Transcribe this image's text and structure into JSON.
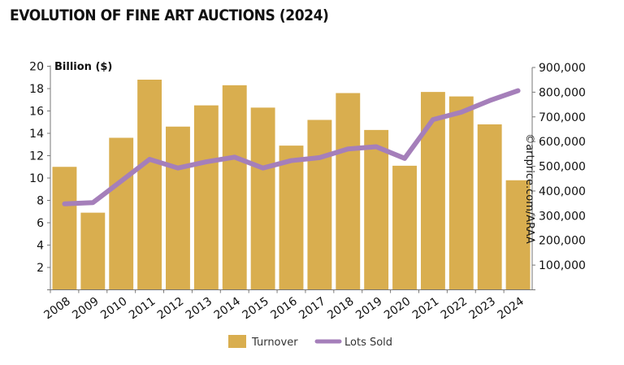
{
  "chart_data": {
    "type": "bar",
    "title": "EVOLUTION OF FINE ART AUCTIONS (2024)",
    "ylabel": "Billion ($)",
    "y2label": "",
    "watermark": "©artprice.com/ARAA",
    "categories": [
      "2008",
      "2009",
      "2010",
      "2011",
      "2012",
      "2013",
      "2014",
      "2015",
      "2016",
      "2017",
      "2018",
      "2019",
      "2020",
      "2021",
      "2022",
      "2023",
      "2024"
    ],
    "ylim": [
      0,
      20
    ],
    "y_ticks": [
      2,
      4,
      6,
      8,
      10,
      12,
      14,
      16,
      18,
      20
    ],
    "y2lim": [
      0,
      900000
    ],
    "y2_ticks": [
      "100,000",
      "200,000",
      "300,000",
      "400,000",
      "500,000",
      "600,000",
      "700,000",
      "800,000",
      "900,000"
    ],
    "grid": false,
    "legend": "bottom",
    "series": [
      {
        "name": "Turnover",
        "type": "bar",
        "axis": "left",
        "color": "#d9ae4f",
        "values": [
          11.0,
          6.9,
          13.6,
          18.8,
          14.6,
          16.5,
          18.3,
          16.3,
          12.9,
          15.2,
          17.6,
          14.3,
          11.1,
          17.7,
          17.3,
          14.8,
          9.8
        ]
      },
      {
        "name": "Lots Sold",
        "type": "line",
        "axis": "right",
        "color": "#a57fba",
        "values": [
          348000,
          353000,
          440000,
          528000,
          493000,
          518000,
          537000,
          493000,
          523000,
          535000,
          570000,
          579000,
          532000,
          689000,
          719000,
          766000,
          806000
        ]
      }
    ]
  }
}
